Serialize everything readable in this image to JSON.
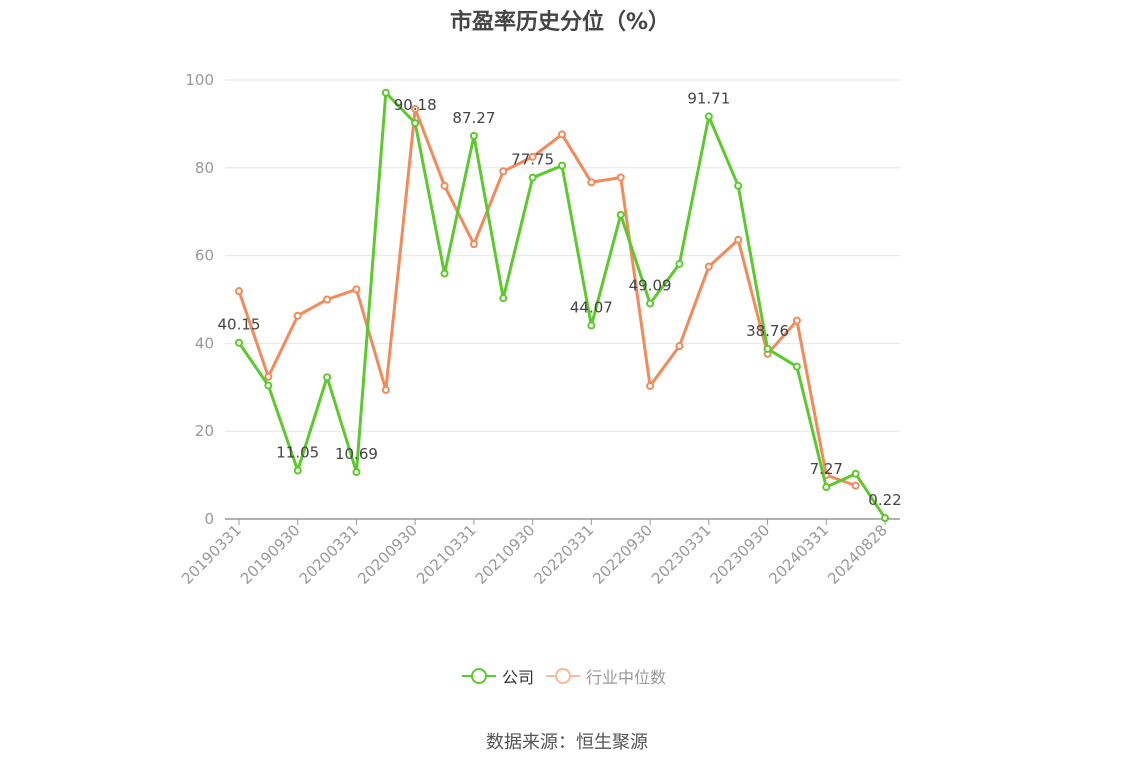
{
  "chart_data": {
    "type": "line",
    "title": "市盈率历史分位（%）",
    "xlabel": "",
    "ylabel": "",
    "ylim": [
      0,
      100
    ],
    "yticks": [
      0,
      20,
      40,
      60,
      80,
      100
    ],
    "grid": true,
    "legend_position": "bottom-center",
    "x": [
      "20190331",
      "20190630",
      "20190930",
      "20191231",
      "20200331",
      "20200630",
      "20200930",
      "20201231",
      "20210331",
      "20210630",
      "20210930",
      "20211231",
      "20220331",
      "20220630",
      "20220930",
      "20221231",
      "20230331",
      "20230630",
      "20230930",
      "20231231",
      "20240331",
      "20240630",
      "20240828"
    ],
    "x_tick_labels": [
      "20190331",
      "20190930",
      "20200331",
      "20200930",
      "20210331",
      "20210930",
      "20220331",
      "20220930",
      "20230331",
      "20230930",
      "20240331",
      "20240828"
    ],
    "series": [
      {
        "name": "公司",
        "color": "#5cc92d",
        "values": [
          40.15,
          30.4,
          11.05,
          32.3,
          10.69,
          97.1,
          90.18,
          55.9,
          87.27,
          50.3,
          77.75,
          80.5,
          44.07,
          69.3,
          49.09,
          58.1,
          91.71,
          75.9,
          38.76,
          34.7,
          7.27,
          10.3,
          0.22
        ],
        "labels": [
          "40.15",
          "",
          "11.05",
          "",
          "10.69",
          "",
          "90.18",
          "",
          "87.27",
          "",
          "77.75",
          "",
          "44.07",
          "",
          "49.09",
          "",
          "91.71",
          "",
          "38.76",
          "",
          "7.27",
          "",
          "0.22"
        ]
      },
      {
        "name": "行业中位数",
        "color": "#f28a59",
        "values": [
          51.9,
          32.4,
          46.3,
          50.0,
          52.3,
          29.4,
          93.4,
          75.9,
          62.6,
          79.2,
          82.5,
          87.6,
          76.7,
          77.8,
          30.3,
          39.4,
          57.5,
          63.6,
          37.6,
          45.2,
          10.0,
          7.6,
          null
        ],
        "labels": []
      }
    ]
  },
  "legend": {
    "items": [
      {
        "label": "公司",
        "color": "#5cc92d",
        "active": true
      },
      {
        "label": "行业中位数",
        "color": "#f9b99a",
        "active": false
      }
    ]
  },
  "footer": {
    "source": "数据来源：恒生聚源"
  }
}
